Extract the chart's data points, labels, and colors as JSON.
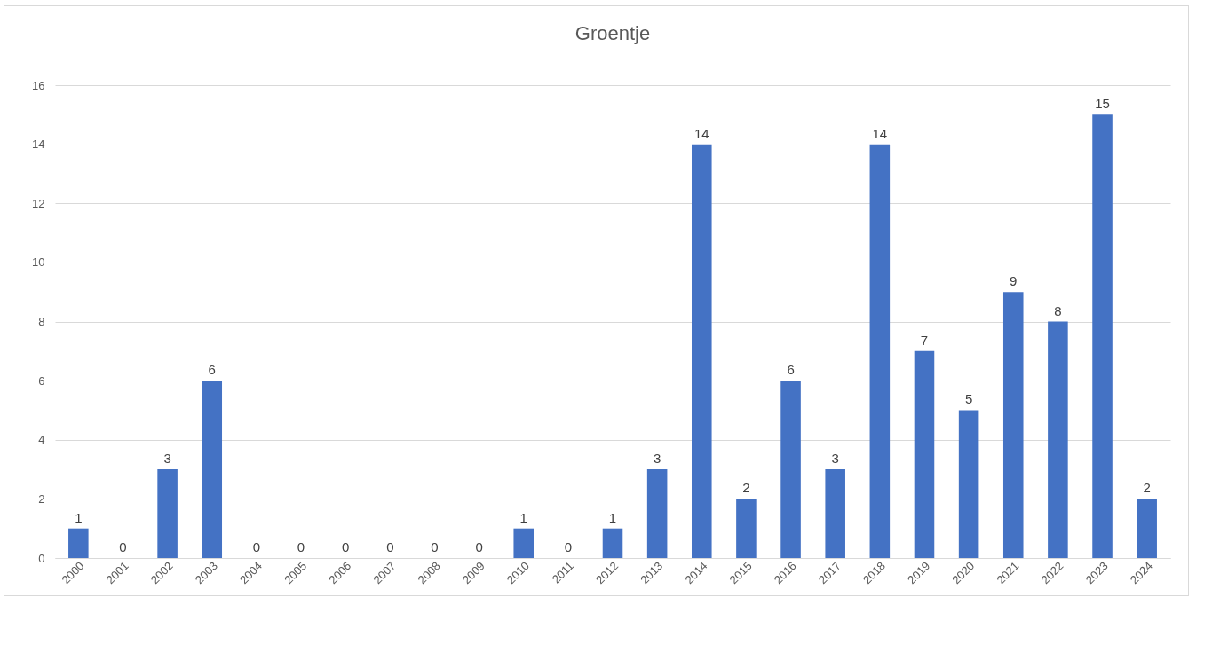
{
  "chart_data": {
    "type": "bar",
    "title": "Groentje",
    "categories": [
      "2000",
      "2001",
      "2002",
      "2003",
      "2004",
      "2005",
      "2006",
      "2007",
      "2008",
      "2009",
      "2010",
      "2011",
      "2012",
      "2013",
      "2014",
      "2015",
      "2016",
      "2017",
      "2018",
      "2019",
      "2020",
      "2021",
      "2022",
      "2023",
      "2024"
    ],
    "values": [
      1,
      0,
      3,
      6,
      0,
      0,
      0,
      0,
      0,
      0,
      1,
      0,
      1,
      3,
      14,
      2,
      6,
      3,
      14,
      7,
      5,
      9,
      8,
      15,
      2
    ],
    "color": "#4472c4",
    "ylim": [
      0,
      16
    ],
    "yticks": [
      0,
      2,
      4,
      6,
      8,
      10,
      12,
      14,
      16
    ],
    "grid": "y",
    "data_labels": true
  }
}
